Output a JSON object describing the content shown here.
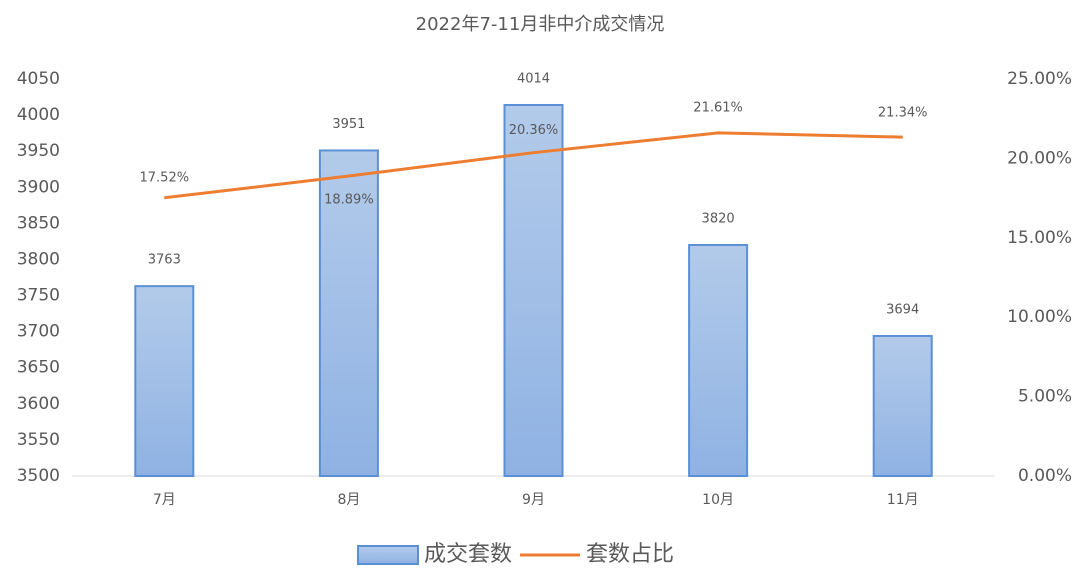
{
  "chart_data": {
    "type": "bar",
    "title": "2022年7-11月非中介成交情况",
    "categories": [
      "7月",
      "8月",
      "9月",
      "10月",
      "11月"
    ],
    "series": [
      {
        "name": "成交套数",
        "type": "bar",
        "color": "#5b8fd6",
        "values": [
          3763,
          3951,
          4014,
          3820,
          3694
        ]
      },
      {
        "name": "套数占比",
        "type": "line",
        "axis": "y2",
        "color": "#ed7d31",
        "values": [
          17.52,
          18.89,
          20.36,
          21.61,
          21.34
        ],
        "value_labels": [
          "17.52%",
          "18.89%",
          "20.36%",
          "21.61%",
          "21.34%"
        ]
      }
    ],
    "ylim": [
      3500,
      4050
    ],
    "yticks": [
      3500,
      3550,
      3600,
      3650,
      3700,
      3750,
      3800,
      3850,
      3900,
      3950,
      4000,
      4050
    ],
    "y2lim": [
      0,
      25
    ],
    "y2ticks": [
      {
        "value": 0,
        "label": "0.00%"
      },
      {
        "value": 5,
        "label": "5.00%"
      },
      {
        "value": 10,
        "label": "10.00%"
      },
      {
        "value": 15,
        "label": "15.00%"
      },
      {
        "value": 20,
        "label": "20.00%"
      },
      {
        "value": 25,
        "label": "25.00%"
      }
    ],
    "legend": "bottom"
  }
}
